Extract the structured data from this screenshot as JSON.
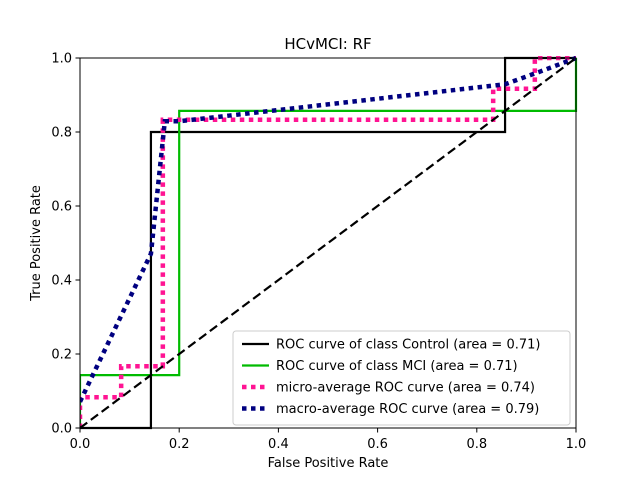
{
  "chart_data": {
    "type": "line",
    "title": "HCvMCI: RF",
    "xlabel": "False Positive Rate",
    "ylabel": "True Positive Rate",
    "xlim": [
      0.0,
      1.0
    ],
    "ylim": [
      0.0,
      1.0
    ],
    "xticks": [
      0.0,
      0.2,
      0.4,
      0.6,
      0.8,
      1.0
    ],
    "yticks": [
      0.0,
      0.2,
      0.4,
      0.6,
      0.8,
      1.0
    ],
    "tick_labels": [
      "0.0",
      "0.2",
      "0.4",
      "0.6",
      "0.8",
      "1.0"
    ],
    "grid": false,
    "legend_position": "lower-right",
    "series": [
      {
        "name": "ROC curve of class  Control (area = 0.71)",
        "color": "#000000",
        "style": "solid",
        "x": [
          0.0,
          0.143,
          0.143,
          0.143,
          0.857,
          0.857,
          1.0
        ],
        "y": [
          0.0,
          0.0,
          0.4,
          0.8,
          0.8,
          1.0,
          1.0
        ]
      },
      {
        "name": "ROC curve of class  MCI (area = 0.71)",
        "color": "#00bb00",
        "style": "solid",
        "x": [
          0.0,
          0.0,
          0.2,
          0.2,
          1.0,
          1.0
        ],
        "y": [
          0.0,
          0.143,
          0.143,
          0.857,
          0.857,
          1.0
        ]
      },
      {
        "name": "micro-average ROC curve (area = 0.74)",
        "color": "#ff1493",
        "style": "dotted",
        "x": [
          0.0,
          0.0,
          0.083,
          0.083,
          0.167,
          0.167,
          0.833,
          0.833,
          0.917,
          0.917,
          1.0
        ],
        "y": [
          0.0,
          0.083,
          0.083,
          0.167,
          0.167,
          0.833,
          0.833,
          0.917,
          0.917,
          1.0,
          1.0
        ]
      },
      {
        "name": "macro-average ROC curve (area = 0.79)",
        "color": "#000080",
        "style": "dotted",
        "x": [
          0.0,
          0.143,
          0.171,
          0.2,
          0.857,
          0.929,
          1.0
        ],
        "y": [
          0.071,
          0.471,
          0.829,
          0.829,
          0.929,
          0.964,
          1.0
        ]
      },
      {
        "name": "",
        "color": "#000000",
        "style": "dashed",
        "x": [
          0.0,
          1.0
        ],
        "y": [
          0.0,
          1.0
        ]
      }
    ]
  }
}
